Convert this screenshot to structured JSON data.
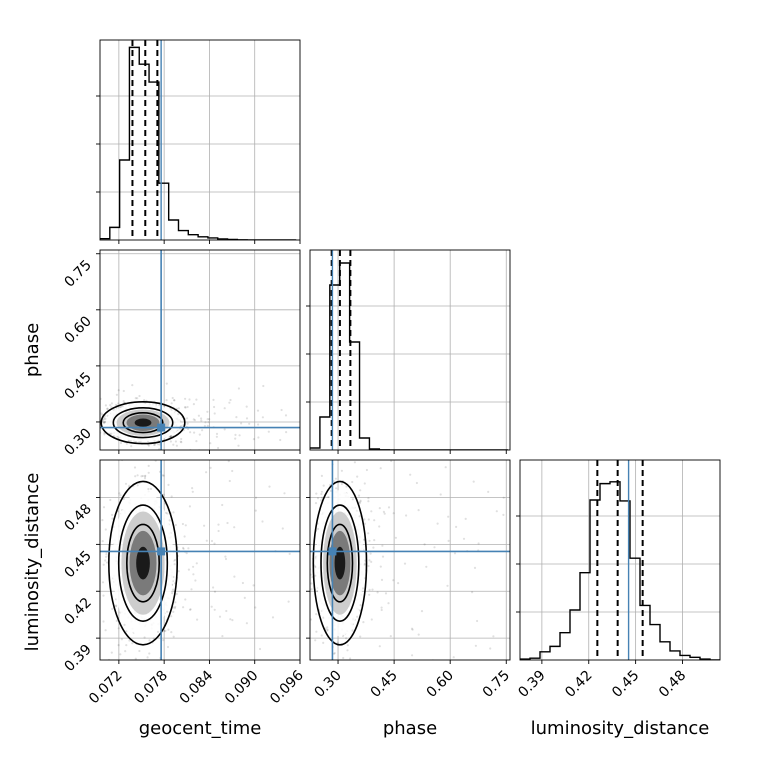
{
  "colors": {
    "truth": "#4682b4",
    "hist": "#000000",
    "grid": "#b0b0b0",
    "scatter": "#000000"
  },
  "chart_data": {
    "type": "corner",
    "parameters": [
      "geocent_time",
      "phase",
      "luminosity_distance"
    ],
    "axis_labels": [
      "geocent_time",
      "phase",
      "luminosity_distance"
    ],
    "ranges": [
      [
        0.0695,
        0.096
      ],
      [
        0.225,
        0.76
      ],
      [
        0.376,
        0.504
      ]
    ],
    "ticks": [
      {
        "values": [
          0.072,
          0.078,
          0.084,
          0.09,
          0.096
        ],
        "labels": [
          "0.072",
          "0.078",
          "0.084",
          "0.090",
          "0.096"
        ]
      },
      {
        "values": [
          0.3,
          0.45,
          0.6,
          0.75
        ],
        "labels": [
          "0.30",
          "0.45",
          "0.60",
          "0.75"
        ]
      },
      {
        "values": [
          0.39,
          0.42,
          0.45,
          0.48
        ],
        "labels": [
          "0.39",
          "0.42",
          "0.45",
          "0.48"
        ]
      }
    ],
    "truths": [
      0.0776,
      0.285,
      0.4455
    ],
    "quantiles": [
      {
        "lower": 0.0738,
        "median": 0.0755,
        "upper": 0.0771
      },
      {
        "lower": 0.283,
        "median": 0.305,
        "upper": 0.333
      },
      {
        "lower": 0.4255,
        "median": 0.4385,
        "upper": 0.4545
      }
    ],
    "histograms": [
      {
        "bin_edges": [
          0.0695,
          0.0708,
          0.0721,
          0.0734,
          0.0747,
          0.076,
          0.0773,
          0.0786,
          0.0799,
          0.0812,
          0.0825,
          0.0838,
          0.0851,
          0.0864,
          0.0877,
          0.089,
          0.0903,
          0.0916,
          0.0929,
          0.0942,
          0.0955
        ],
        "counts": [
          1.2,
          12.0,
          76.0,
          183.0,
          167.0,
          150.0,
          54.0,
          19.0,
          9.0,
          5.0,
          3.0,
          2.0,
          1.0,
          0.5,
          0.2,
          0.1,
          0.0,
          0.0,
          0.0,
          0.0
        ],
        "ymax": 190
      },
      {
        "bin_edges": [
          0.225,
          0.2515,
          0.278,
          0.3045,
          0.331,
          0.3575,
          0.384,
          0.4105,
          0.437,
          0.4635,
          0.49,
          0.5165,
          0.543,
          0.5695,
          0.596,
          0.6225,
          0.649,
          0.6755,
          0.702,
          0.7285,
          0.755
        ],
        "counts": [
          2.0,
          33.0,
          165.0,
          187.0,
          108.0,
          12.0,
          1.0,
          0.2,
          0.0,
          0.0,
          0.0,
          0.0,
          0.0,
          0.0,
          0.0,
          0.0,
          0.0,
          0.0,
          0.0,
          0.0
        ],
        "ymax": 200
      },
      {
        "bin_edges": [
          0.376,
          0.3824,
          0.3888,
          0.3952,
          0.4016,
          0.408,
          0.4144,
          0.4208,
          0.4272,
          0.4336,
          0.44,
          0.4464,
          0.4528,
          0.4592,
          0.4656,
          0.472,
          0.4784,
          0.4848,
          0.4912,
          0.4976,
          0.504
        ],
        "counts": [
          1.0,
          2.0,
          9.0,
          15.0,
          30.0,
          55.0,
          96.0,
          176.0,
          194.0,
          196.0,
          175.0,
          112.0,
          60.0,
          39.0,
          20.0,
          10.0,
          5.0,
          3.0,
          1.0,
          0.0
        ],
        "ymax": 220
      }
    ],
    "joint_centers": [
      {
        "x": "geocent_time",
        "y": "phase",
        "center": [
          0.0752,
          0.298
        ]
      },
      {
        "x": "geocent_time",
        "y": "luminosity_distance",
        "center": [
          0.0752,
          0.438
        ]
      },
      {
        "x": "phase",
        "y": "luminosity_distance",
        "center": [
          0.305,
          0.438
        ]
      }
    ],
    "grid": true
  }
}
